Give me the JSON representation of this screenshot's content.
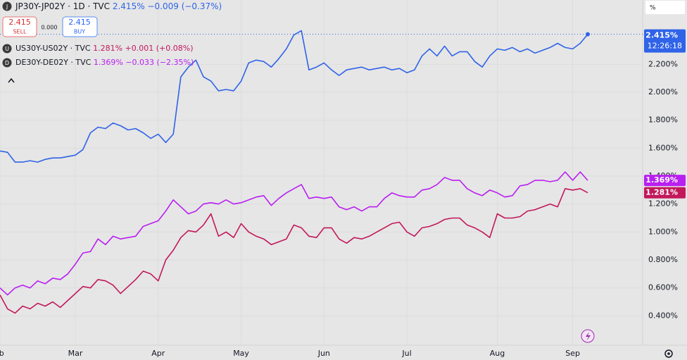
{
  "chart_data": {
    "type": "line",
    "categories": [
      "Feb",
      null,
      null,
      null,
      null,
      null,
      null,
      null,
      null,
      null,
      "Mar",
      null,
      null,
      null,
      null,
      null,
      null,
      null,
      null,
      null,
      null,
      "Apr",
      null,
      null,
      null,
      null,
      null,
      null,
      null,
      null,
      null,
      null,
      "May",
      null,
      null,
      null,
      null,
      null,
      null,
      null,
      null,
      null,
      null,
      "Jun",
      null,
      null,
      null,
      null,
      null,
      null,
      null,
      null,
      null,
      null,
      "Jul",
      null,
      null,
      null,
      null,
      null,
      null,
      null,
      null,
      null,
      null,
      null,
      "Aug",
      null,
      null,
      null,
      null,
      null,
      null,
      null,
      null,
      null,
      "Sep",
      null,
      null
    ],
    "series": [
      {
        "name": "JP30Y-JP02Y · 1D · TVC",
        "icon": "J",
        "color": "#2f63e8",
        "last_label": "2.415%",
        "change": "−0.009",
        "change_pct": "(−0.37%)",
        "time": "12:26:18",
        "values": [
          1.58,
          1.57,
          1.5,
          1.5,
          1.51,
          1.5,
          1.52,
          1.53,
          1.53,
          1.54,
          1.55,
          1.59,
          1.71,
          1.75,
          1.74,
          1.78,
          1.76,
          1.73,
          1.74,
          1.71,
          1.67,
          1.7,
          1.64,
          1.7,
          2.11,
          2.18,
          2.23,
          2.11,
          2.08,
          2.01,
          2.02,
          2.01,
          2.08,
          2.21,
          2.23,
          2.22,
          2.18,
          2.24,
          2.31,
          2.41,
          2.44,
          2.16,
          2.18,
          2.21,
          2.16,
          2.12,
          2.16,
          2.17,
          2.18,
          2.16,
          2.17,
          2.18,
          2.16,
          2.17,
          2.14,
          2.16,
          2.26,
          2.31,
          2.26,
          2.33,
          2.26,
          2.29,
          2.29,
          2.22,
          2.18,
          2.26,
          2.31,
          2.3,
          2.32,
          2.29,
          2.31,
          2.28,
          2.3,
          2.32,
          2.35,
          2.32,
          2.31,
          2.35,
          2.415
        ]
      },
      {
        "name": "US30Y-US02Y · TVC",
        "icon": "U",
        "color": "#c2185b",
        "last_label": "1.281%",
        "change": "+0.001",
        "change_pct": "(+0.08%)",
        "values": [
          0.55,
          0.45,
          0.42,
          0.47,
          0.45,
          0.49,
          0.47,
          0.5,
          0.46,
          0.51,
          0.56,
          0.61,
          0.6,
          0.66,
          0.65,
          0.62,
          0.56,
          0.61,
          0.66,
          0.72,
          0.7,
          0.65,
          0.8,
          0.87,
          0.96,
          1.01,
          1.0,
          1.05,
          1.13,
          0.97,
          1.0,
          0.96,
          1.06,
          1.0,
          0.97,
          0.95,
          0.91,
          0.93,
          0.95,
          1.05,
          1.03,
          0.97,
          0.96,
          1.03,
          1.03,
          0.95,
          0.92,
          0.96,
          0.95,
          0.97,
          1.0,
          1.03,
          1.06,
          1.07,
          1.0,
          0.97,
          1.03,
          1.04,
          1.06,
          1.09,
          1.1,
          1.1,
          1.05,
          1.03,
          1.0,
          0.96,
          1.13,
          1.1,
          1.1,
          1.11,
          1.15,
          1.16,
          1.18,
          1.2,
          1.18,
          1.31,
          1.3,
          1.31,
          1.281
        ]
      },
      {
        "name": "DE30Y-DE02Y · TVC",
        "icon": "D",
        "color": "#b81ff0",
        "last_label": "1.369%",
        "change": "−0.033",
        "change_pct": "(−2.35%)",
        "values": [
          0.6,
          0.55,
          0.6,
          0.62,
          0.6,
          0.65,
          0.63,
          0.67,
          0.66,
          0.7,
          0.77,
          0.85,
          0.86,
          0.95,
          0.91,
          0.97,
          0.95,
          0.96,
          0.97,
          1.04,
          1.06,
          1.08,
          1.15,
          1.23,
          1.18,
          1.13,
          1.15,
          1.2,
          1.21,
          1.2,
          1.23,
          1.2,
          1.21,
          1.23,
          1.25,
          1.26,
          1.19,
          1.24,
          1.28,
          1.31,
          1.34,
          1.24,
          1.25,
          1.24,
          1.25,
          1.18,
          1.16,
          1.18,
          1.15,
          1.18,
          1.18,
          1.24,
          1.28,
          1.26,
          1.25,
          1.25,
          1.3,
          1.31,
          1.34,
          1.39,
          1.37,
          1.37,
          1.31,
          1.28,
          1.26,
          1.3,
          1.28,
          1.25,
          1.26,
          1.33,
          1.34,
          1.37,
          1.37,
          1.36,
          1.37,
          1.43,
          1.37,
          1.43,
          1.369
        ]
      }
    ],
    "ylim": [
      0.19,
      2.66
    ],
    "yticks": [
      {
        "value": 2.2,
        "label": "2.200%"
      },
      {
        "value": 2.0,
        "label": "2.000%"
      },
      {
        "value": 1.8,
        "label": "1.800%"
      },
      {
        "value": 1.6,
        "label": "1.600%"
      },
      {
        "value": 1.4,
        "label": "1.400%"
      },
      {
        "value": 1.2,
        "label": "1.200%"
      },
      {
        "value": 1.0,
        "label": "1.000%"
      },
      {
        "value": 0.8,
        "label": "0.800%"
      },
      {
        "value": 0.6,
        "label": "0.600%"
      },
      {
        "value": 0.4,
        "label": "0.400%"
      }
    ],
    "grid": true,
    "scale_mode": "%",
    "trade": {
      "sell_price": "2.415",
      "sell": "SELL",
      "spread": "0.000",
      "buy_price": "2.415",
      "buy": "BUY"
    }
  }
}
